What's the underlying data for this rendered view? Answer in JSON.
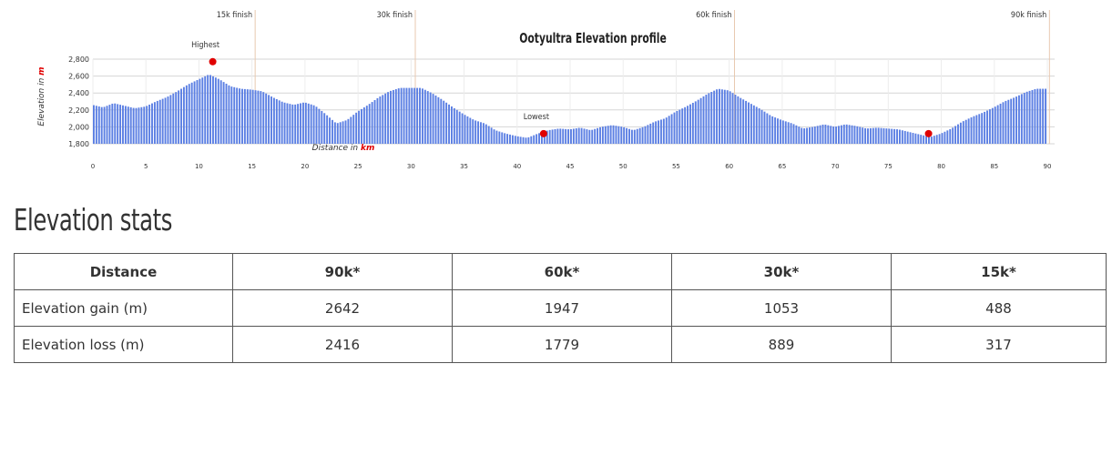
{
  "chart_data": {
    "type": "bar",
    "title": "Ootyultra Elevation profile",
    "ylabel_prefix": "Elevation in ",
    "ylabel_unit": "m",
    "xlabel_prefix": "Distance in ",
    "xlabel_unit": "km",
    "ylim": [
      1800,
      2800
    ],
    "yticks": [
      1800,
      2000,
      2200,
      2400,
      2600,
      2800
    ],
    "ytick_labels": [
      "1,800",
      "2,000",
      "2,200",
      "2,400",
      "2,600",
      "2,800"
    ],
    "xlim": [
      0,
      90
    ],
    "xticks": [
      0,
      5,
      10,
      15,
      20,
      25,
      30,
      35,
      40,
      45,
      50,
      55,
      60,
      65,
      70,
      75,
      80,
      85,
      90
    ],
    "grid": true,
    "bar_color": "#5b7fe3",
    "marker_color": "#e00000",
    "unit_color": "#e00000",
    "profile": {
      "x": [
        0,
        1,
        2,
        3,
        4,
        5,
        6,
        7,
        8,
        9,
        10,
        11,
        12,
        13,
        14,
        15,
        16,
        17,
        18,
        19,
        20,
        21,
        22,
        23,
        24,
        25,
        26,
        27,
        28,
        29,
        30,
        31,
        32,
        33,
        34,
        35,
        36,
        37,
        38,
        39,
        40,
        41,
        42,
        43,
        44,
        45,
        46,
        47,
        48,
        49,
        50,
        51,
        52,
        53,
        54,
        55,
        56,
        57,
        58,
        59,
        60,
        61,
        62,
        63,
        64,
        65,
        66,
        67,
        68,
        69,
        70,
        71,
        72,
        73,
        74,
        75,
        76,
        77,
        78,
        79,
        80,
        81,
        82,
        83,
        84,
        85,
        86,
        87,
        88,
        89,
        90
      ],
      "y": [
        2260,
        2230,
        2280,
        2250,
        2220,
        2240,
        2300,
        2350,
        2420,
        2500,
        2560,
        2620,
        2560,
        2480,
        2450,
        2440,
        2420,
        2350,
        2290,
        2260,
        2290,
        2250,
        2150,
        2040,
        2080,
        2180,
        2260,
        2350,
        2420,
        2460,
        2460,
        2460,
        2400,
        2320,
        2230,
        2150,
        2080,
        2040,
        1960,
        1920,
        1890,
        1870,
        1920,
        1960,
        1980,
        1970,
        1990,
        1960,
        2000,
        2020,
        2000,
        1960,
        2000,
        2060,
        2100,
        2180,
        2240,
        2310,
        2390,
        2450,
        2430,
        2350,
        2280,
        2210,
        2130,
        2080,
        2040,
        1980,
        2000,
        2030,
        2000,
        2030,
        2010,
        1980,
        1990,
        1980,
        1970,
        1940,
        1910,
        1880,
        1920,
        1980,
        2060,
        2120,
        2170,
        2230,
        2300,
        2350,
        2410,
        2450,
        2450
      ]
    },
    "finish_lines": [
      {
        "x": 15.3,
        "label": "15k finish"
      },
      {
        "x": 30.4,
        "label": "30k finish"
      },
      {
        "x": 60.5,
        "label": "60k finish"
      },
      {
        "x": 90.2,
        "label": "90k finish"
      }
    ],
    "annotations": [
      {
        "x": 11.3,
        "y": 2770,
        "label": "Highest"
      },
      {
        "x": 42.5,
        "y": 1920,
        "label": "Lowest"
      },
      {
        "x": 78.8,
        "y": 1920,
        "label": ""
      }
    ]
  },
  "stats": {
    "heading": "Elevation stats",
    "columns": [
      "Distance",
      "90k*",
      "60k*",
      "30k*",
      "15k*"
    ],
    "rows": [
      {
        "label": "Elevation gain (m)",
        "values": [
          "2642",
          "1947",
          "1053",
          "488"
        ]
      },
      {
        "label": "Elevation loss (m)",
        "values": [
          "2416",
          "1779",
          "889",
          "317"
        ]
      }
    ]
  }
}
